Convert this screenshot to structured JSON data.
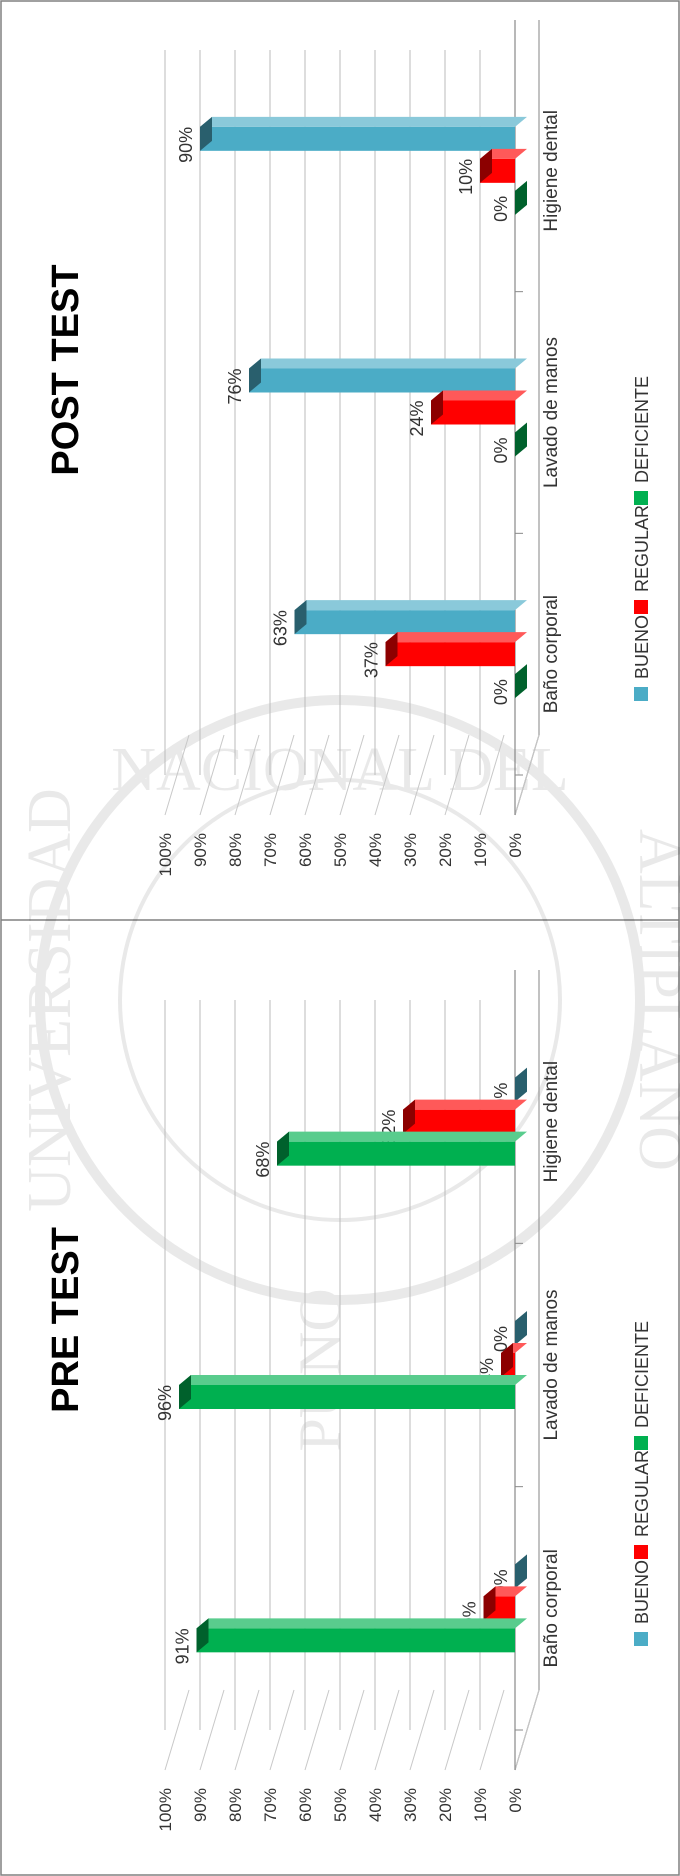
{
  "charts_meta": {
    "percent_ticks": [
      "0%",
      "10%",
      "20%",
      "30%",
      "40%",
      "50%",
      "60%",
      "70%",
      "80%",
      "90%",
      "100%"
    ],
    "watermark": {
      "text_left": "UNIVERSIDAD",
      "text_right": "ALTIPLANO",
      "text_bottom": "NACIONAL DEL",
      "text_seal": "PUNO"
    }
  },
  "chart_data": [
    {
      "type": "bar",
      "title": "PRE TEST",
      "categories": [
        "Baño corporal",
        "Lavado de manos",
        "Higiene dental"
      ],
      "series": [
        {
          "name": "BUENO",
          "color": "#4bacc6",
          "values": [
            0,
            0,
            0
          ],
          "labels": [
            "0%",
            "0%",
            "0%"
          ]
        },
        {
          "name": "REGULAR",
          "color": "#ff0000",
          "values": [
            9,
            4,
            32
          ],
          "labels": [
            "9%",
            "4%",
            "32%"
          ]
        },
        {
          "name": "DEFICIENTE",
          "color": "#00b050",
          "values": [
            91,
            96,
            68
          ],
          "labels": [
            "91%",
            "96%",
            "68%"
          ]
        }
      ],
      "ylim": [
        0,
        100
      ],
      "legend": "bottom",
      "grid": true
    },
    {
      "type": "bar",
      "title": "POST TEST",
      "categories": [
        "Baño corporal",
        "Lavado de manos",
        "Higiene dental"
      ],
      "series": [
        {
          "name": "BUENO",
          "color": "#4bacc6",
          "values": [
            63,
            76,
            90
          ],
          "labels": [
            "63%",
            "76%",
            "90%"
          ]
        },
        {
          "name": "REGULAR",
          "color": "#ff0000",
          "values": [
            37,
            24,
            10
          ],
          "labels": [
            "37%",
            "24%",
            "10%"
          ]
        },
        {
          "name": "DEFICIENTE",
          "color": "#00b050",
          "values": [
            0,
            0,
            0
          ],
          "labels": [
            "0%",
            "0%",
            "0%"
          ]
        }
      ],
      "ylim": [
        0,
        100
      ],
      "legend": "bottom",
      "grid": true
    }
  ]
}
